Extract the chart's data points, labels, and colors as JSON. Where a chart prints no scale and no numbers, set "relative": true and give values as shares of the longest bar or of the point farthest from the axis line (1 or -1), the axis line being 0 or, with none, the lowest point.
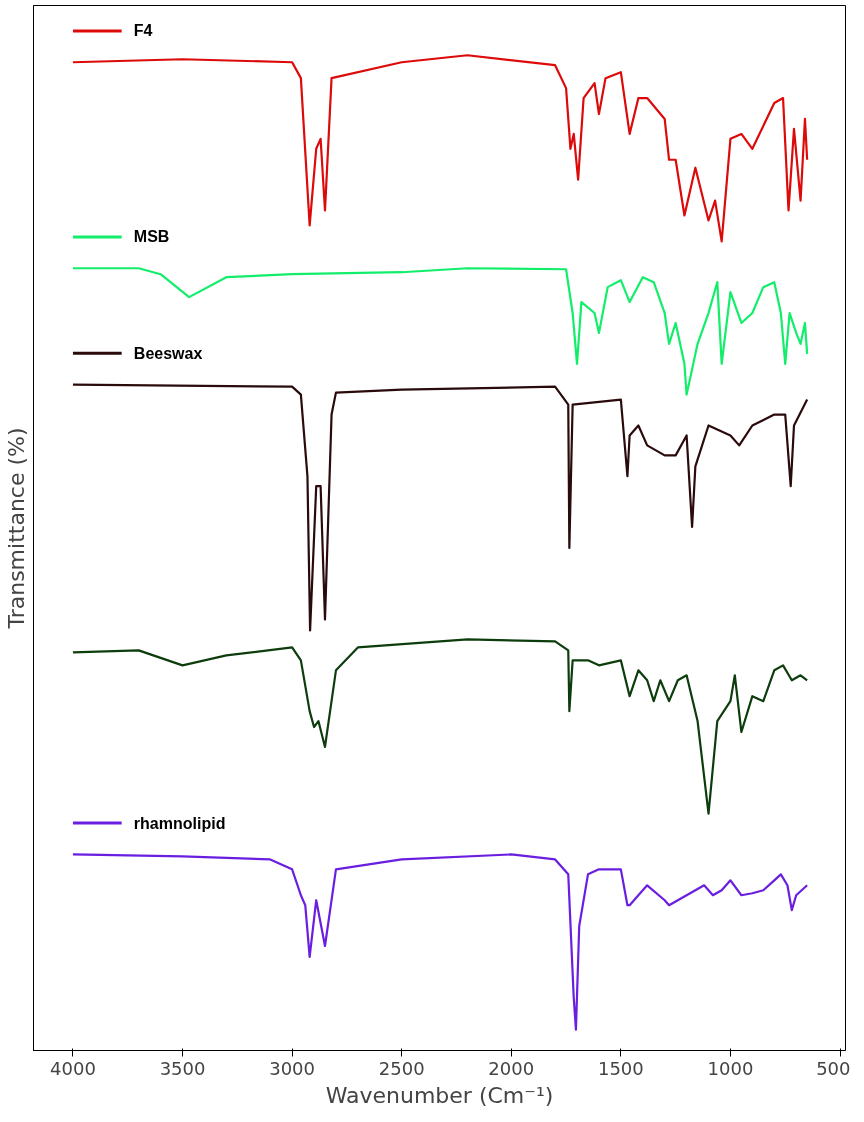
{
  "chart_data": {
    "type": "line",
    "relative": true,
    "xlabel": "Wavenumber (Cm⁻¹)",
    "ylabel": "Transmittance (%)",
    "xlim": [
      4180,
      475
    ],
    "xticks": [
      4000,
      3500,
      3000,
      2500,
      2000,
      1500,
      1000,
      500
    ],
    "tick_labels": "x",
    "grid": false,
    "legend": "top left",
    "marker": "none",
    "line_style": "solid",
    "series": [
      {
        "name": "F4",
        "color": "#dd0a0a",
        "x": [
          4000,
          3500,
          3000,
          2960,
          2920,
          2890,
          2870,
          2850,
          2820,
          2500,
          2200,
          1800,
          1750,
          1730,
          1715,
          1695,
          1670,
          1620,
          1600,
          1570,
          1500,
          1460,
          1420,
          1380,
          1300,
          1280,
          1250,
          1210,
          1160,
          1100,
          1070,
          1040,
          1000,
          950,
          900,
          800,
          760,
          735,
          710,
          680,
          660,
          650
        ],
        "values": [
          0.993,
          0.996,
          0.993,
          0.977,
          0.829,
          0.906,
          0.916,
          0.844,
          0.977,
          0.993,
          1.0,
          0.99,
          0.967,
          0.906,
          0.921,
          0.875,
          0.957,
          0.972,
          0.941,
          0.977,
          0.983,
          0.921,
          0.957,
          0.957,
          0.936,
          0.895,
          0.895,
          0.839,
          0.887,
          0.834,
          0.854,
          0.813,
          0.916,
          0.921,
          0.906,
          0.952,
          0.957,
          0.844,
          0.926,
          0.854,
          0.936,
          0.895
        ]
      },
      {
        "name": "MSB",
        "color": "#12ee6a",
        "x": [
          4000,
          3700,
          3600,
          3470,
          3300,
          3000,
          2500,
          2200,
          1750,
          1720,
          1700,
          1680,
          1620,
          1600,
          1560,
          1500,
          1460,
          1400,
          1350,
          1300,
          1280,
          1250,
          1210,
          1200,
          1150,
          1100,
          1060,
          1040,
          1000,
          950,
          900,
          850,
          800,
          770,
          750,
          730,
          700,
          680,
          660,
          650
        ],
        "values": [
          0.786,
          0.786,
          0.78,
          0.757,
          0.777,
          0.78,
          0.782,
          0.786,
          0.785,
          0.741,
          0.69,
          0.752,
          0.741,
          0.721,
          0.767,
          0.774,
          0.752,
          0.777,
          0.772,
          0.741,
          0.71,
          0.731,
          0.69,
          0.659,
          0.71,
          0.741,
          0.772,
          0.69,
          0.762,
          0.731,
          0.741,
          0.767,
          0.772,
          0.741,
          0.69,
          0.741,
          0.721,
          0.71,
          0.731,
          0.7
        ]
      },
      {
        "name": "Beeswax",
        "color": "#2a0a0a",
        "x": [
          4000,
          3000,
          2960,
          2930,
          2918,
          2890,
          2870,
          2850,
          2820,
          2800,
          2500,
          1800,
          1740,
          1735,
          1720,
          1500,
          1470,
          1460,
          1420,
          1380,
          1300,
          1250,
          1200,
          1175,
          1160,
          1100,
          1000,
          960,
          900,
          800,
          750,
          725,
          710,
          650
        ],
        "values": [
          0.669,
          0.667,
          0.659,
          0.577,
          0.422,
          0.567,
          0.567,
          0.433,
          0.639,
          0.661,
          0.664,
          0.667,
          0.649,
          0.505,
          0.649,
          0.654,
          0.577,
          0.618,
          0.628,
          0.608,
          0.598,
          0.598,
          0.618,
          0.526,
          0.587,
          0.628,
          0.618,
          0.608,
          0.628,
          0.639,
          0.639,
          0.567,
          0.628,
          0.654
        ]
      },
      {
        "color": "#0d3d0d",
        "x": [
          4000,
          3700,
          3500,
          3300,
          3000,
          2960,
          2920,
          2900,
          2880,
          2850,
          2800,
          2700,
          2200,
          1800,
          1740,
          1735,
          1720,
          1650,
          1600,
          1500,
          1460,
          1420,
          1380,
          1350,
          1320,
          1280,
          1240,
          1200,
          1150,
          1100,
          1060,
          1000,
          980,
          950,
          900,
          850,
          800,
          760,
          720,
          680,
          650
        ],
        "values": [
          0.4,
          0.402,
          0.387,
          0.397,
          0.405,
          0.392,
          0.341,
          0.325,
          0.331,
          0.305,
          0.382,
          0.405,
          0.413,
          0.411,
          0.402,
          0.341,
          0.392,
          0.392,
          0.387,
          0.392,
          0.356,
          0.382,
          0.372,
          0.351,
          0.372,
          0.351,
          0.372,
          0.377,
          0.331,
          0.238,
          0.331,
          0.351,
          0.377,
          0.32,
          0.356,
          0.351,
          0.382,
          0.387,
          0.372,
          0.377,
          0.372
        ]
      },
      {
        "name": "rhamnolipid",
        "color": "#6a1ee0",
        "x": [
          4000,
          3500,
          3100,
          3000,
          2960,
          2940,
          2920,
          2890,
          2850,
          2800,
          2500,
          2000,
          1800,
          1740,
          1715,
          1705,
          1690,
          1650,
          1600,
          1500,
          1470,
          1460,
          1420,
          1380,
          1300,
          1280,
          1200,
          1120,
          1080,
          1040,
          1000,
          950,
          900,
          850,
          800,
          770,
          740,
          720,
          700,
          650
        ],
        "values": [
          0.197,
          0.195,
          0.192,
          0.182,
          0.156,
          0.146,
          0.094,
          0.151,
          0.105,
          0.182,
          0.192,
          0.197,
          0.192,
          0.177,
          0.053,
          0.021,
          0.125,
          0.177,
          0.182,
          0.182,
          0.146,
          0.146,
          0.156,
          0.166,
          0.151,
          0.146,
          0.156,
          0.166,
          0.156,
          0.161,
          0.171,
          0.156,
          0.158,
          0.161,
          0.171,
          0.177,
          0.166,
          0.141,
          0.156,
          0.166
        ]
      }
    ]
  }
}
